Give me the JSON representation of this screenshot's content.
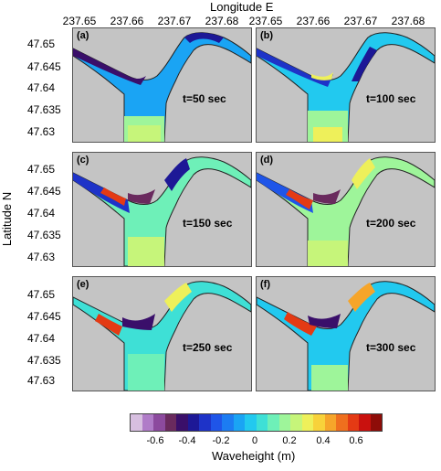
{
  "title": "Longitude E",
  "ylabel": "Latitude N",
  "lon_ticks": [
    "237.65",
    "237.66",
    "237.67",
    "237.68"
  ],
  "lat_ticks": [
    "47.65",
    "47.645",
    "47.64",
    "47.635",
    "47.63"
  ],
  "panels": [
    {
      "label": "(a)",
      "time": "t=50 sec"
    },
    {
      "label": "(b)",
      "time": "t=100 sec"
    },
    {
      "label": "(c)",
      "time": "t=150 sec"
    },
    {
      "label": "(d)",
      "time": "t=200 sec"
    },
    {
      "label": "(e)",
      "time": "t=250 sec"
    },
    {
      "label": "(f)",
      "time": "t=300 sec"
    }
  ],
  "colorbar": {
    "label": "Waveheight (m)",
    "ticks": [
      "-0.6",
      "-0.4",
      "-0.2",
      "0",
      "0.2",
      "0.4",
      "0.6"
    ],
    "colors": [
      "#d7bfe0",
      "#b07cc8",
      "#8c4a9e",
      "#6a2a5e",
      "#3a0f6a",
      "#1d1896",
      "#1e33c8",
      "#1f55e8",
      "#1c7cf2",
      "#1aa4f4",
      "#22c9ef",
      "#3ee0d6",
      "#6ef0b8",
      "#9ef59a",
      "#c6f57a",
      "#eef05a",
      "#f8d23a",
      "#f6a52a",
      "#ef6f1e",
      "#e43a14",
      "#c9110e",
      "#8e0c08"
    ]
  },
  "colors": {
    "land": "#c4c4c4",
    "ocean_edge": "#1f55e8"
  }
}
